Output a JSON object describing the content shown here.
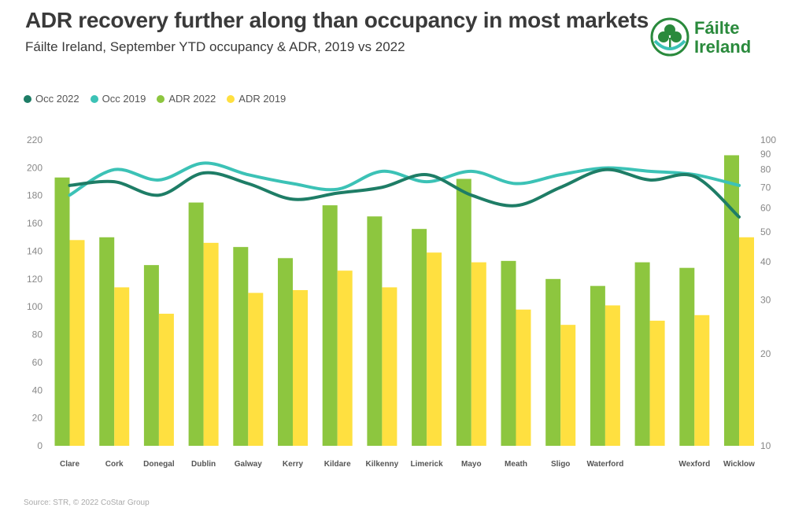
{
  "header": {
    "title": "ADR recovery further along than occupancy in most markets",
    "subtitle": "Fáilte Ireland, September YTD occupancy & ADR, 2019 vs 2022"
  },
  "logo": {
    "line1": "Fáilte",
    "line2": "Ireland",
    "brand_color": "#2a8a3c",
    "icon": "shamrock-icon"
  },
  "footer": {
    "source": "Source: STR, © 2022 CoStar Group"
  },
  "chart_data": {
    "type": "bar",
    "title": "ADR recovery further along than occupancy in most markets",
    "categories": [
      "Clare",
      "Cork",
      "Donegal",
      "Dublin",
      "Galway",
      "Kerry",
      "Kildare",
      "Kilkenny",
      "Limerick",
      "Mayo",
      "Meath",
      "Sligo",
      "Waterford",
      "",
      "Wexford",
      "Wicklow"
    ],
    "series": [
      {
        "name": "ADR 2022",
        "kind": "bar",
        "axis": "left",
        "color": "#8dc63f",
        "values": [
          193,
          150,
          130,
          175,
          143,
          135,
          173,
          165,
          156,
          192,
          133,
          120,
          115,
          132,
          128,
          209
        ]
      },
      {
        "name": "ADR 2019",
        "kind": "bar",
        "axis": "left",
        "color": "#ffe040",
        "values": [
          148,
          114,
          95,
          146,
          110,
          112,
          126,
          114,
          139,
          132,
          98,
          87,
          101,
          90,
          94,
          150
        ]
      },
      {
        "name": "Occ 2022",
        "kind": "line",
        "axis": "right",
        "color": "#1e7d66",
        "values": [
          71,
          73,
          66,
          78,
          72,
          64,
          67,
          70,
          77,
          66,
          61,
          70,
          80,
          74,
          76,
          56
        ]
      },
      {
        "name": "Occ 2019",
        "kind": "line",
        "axis": "right",
        "color": "#3cc2b6",
        "values": [
          66,
          80,
          74,
          84,
          77,
          72,
          69,
          79,
          73,
          79,
          72,
          77,
          81,
          79,
          77,
          71
        ]
      }
    ],
    "legend": [
      "Occ 2022",
      "Occ 2019",
      "ADR 2022",
      "ADR 2019"
    ],
    "legend_colors": [
      "#1e7d66",
      "#3cc2b6",
      "#8dc63f",
      "#ffe040"
    ],
    "left_axis": {
      "ylim": [
        0,
        220
      ],
      "ticks": [
        0,
        20,
        40,
        60,
        80,
        100,
        120,
        140,
        160,
        180,
        200,
        220
      ]
    },
    "right_axis": {
      "scale": "log",
      "ylim": [
        10,
        100
      ],
      "ticks": [
        10,
        20,
        30,
        40,
        50,
        60,
        70,
        80,
        90,
        100
      ]
    },
    "xlabel": "",
    "ylabel": "",
    "grid": false
  }
}
